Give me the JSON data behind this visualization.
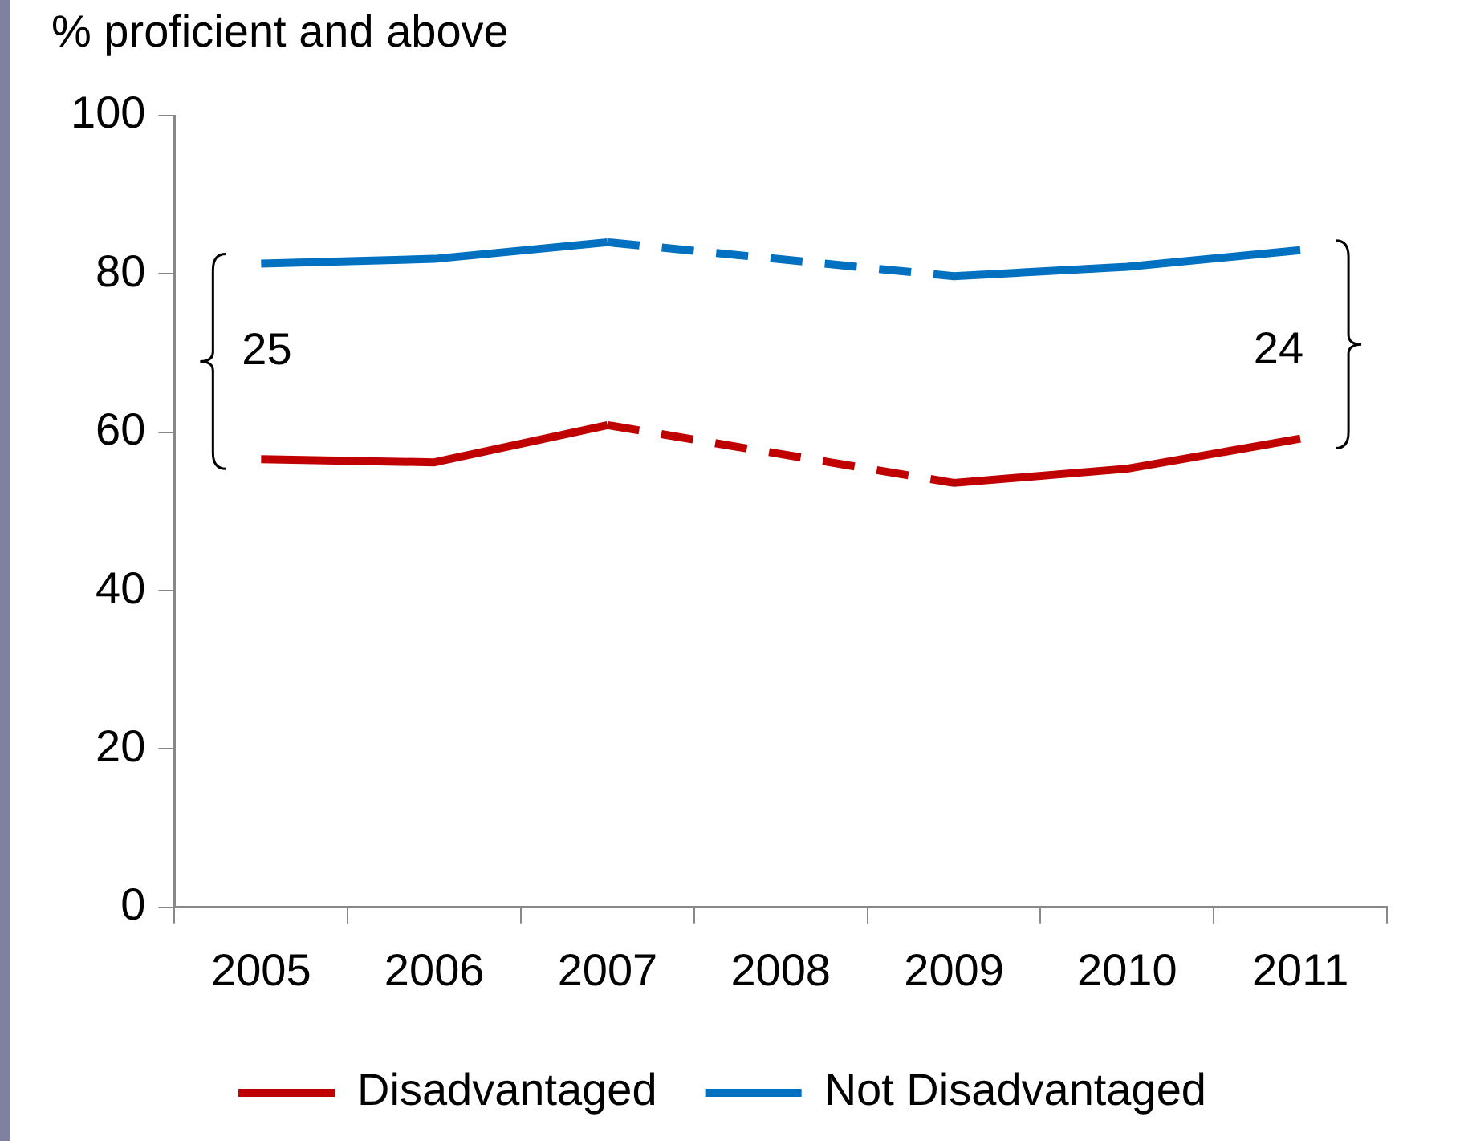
{
  "chart_data": {
    "type": "line",
    "ylabel": "% proficient and above",
    "categories": [
      "2005",
      "2006",
      "2007",
      "2008",
      "2009",
      "2010",
      "2011"
    ],
    "series": [
      {
        "name": "Disadvantaged",
        "color": "#c00000",
        "values": [
          56.6,
          56.2,
          60.9,
          null,
          53.6,
          55.4,
          59.2
        ]
      },
      {
        "name": "Not Disadvantaged",
        "color": "#0070c0",
        "values": [
          81.3,
          81.9,
          84.0,
          null,
          79.7,
          80.9,
          83.0
        ]
      }
    ],
    "ylim": [
      0,
      100
    ],
    "yticks": [
      0,
      20,
      40,
      60,
      80,
      100
    ],
    "grid": false,
    "legend": "bottom",
    "marker": "none",
    "annotations": [
      "25",
      "24"
    ]
  }
}
